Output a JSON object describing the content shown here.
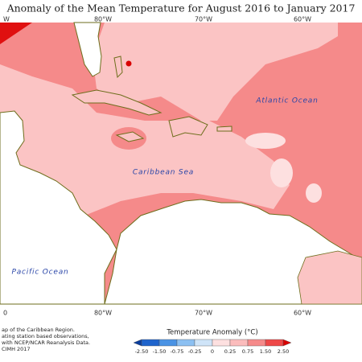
{
  "header": {
    "title": "Anomaly of the Mean Temperature for August 2016 to January 2017"
  },
  "map": {
    "top_lon_labels": [
      "W",
      "80°W",
      "70°W",
      "60°W"
    ],
    "bottom_lon_labels": [
      "0",
      "80°W",
      "70°W",
      "60°W"
    ],
    "sea_labels": [
      "Atlantic Ocean",
      "Caribbean Sea",
      "Pacific Ocean"
    ]
  },
  "legend": {
    "title": "Temperature Anomaly (°C)",
    "ticks": [
      "-2.50",
      "-1.50",
      "-0.75",
      "-0.25",
      "0",
      "0.25",
      "0.75",
      "1.50",
      "2.50"
    ],
    "colors": [
      "#0a3d9c",
      "#1f64cc",
      "#4a93e4",
      "#8cc0f2",
      "#cfe4f8",
      "#fde0e0",
      "#fbbcbc",
      "#f58a8a",
      "#ee4848",
      "#d80000"
    ]
  },
  "footer": {
    "lines": [
      "ap of the Caribbean Region.",
      "ating station based observations,",
      "with NCEP/NCAR Reanalysis Data.",
      "CIMH 2017"
    ]
  }
}
